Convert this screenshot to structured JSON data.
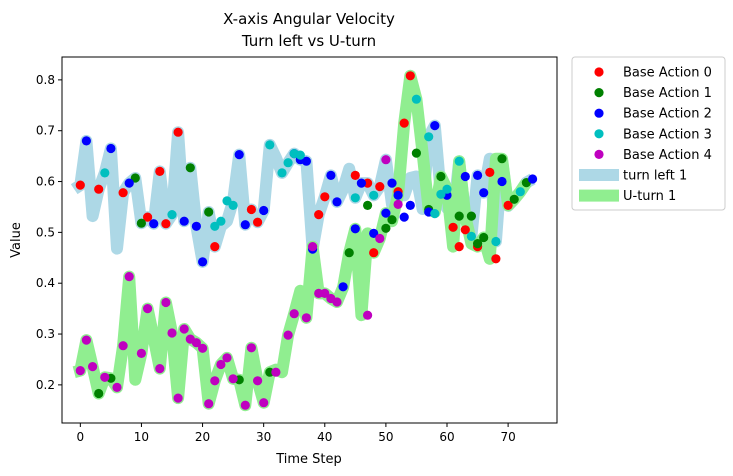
{
  "chart_data": {
    "type": "scatter",
    "title": "X-axis Angular Velocity",
    "subtitle": "Turn left vs U-turn",
    "xlabel": "Time Step",
    "ylabel": "Value",
    "xlim": [
      -3,
      78
    ],
    "ylim": [
      0.125,
      0.845
    ],
    "xticks": [
      0,
      10,
      20,
      30,
      40,
      50,
      60,
      70
    ],
    "yticks": [
      0.2,
      0.3,
      0.4,
      0.5,
      0.6,
      0.7,
      0.8
    ],
    "grid": false,
    "legend_position": "outside-top-right",
    "bands": [
      {
        "name": "turn left 1",
        "color": "#add8e6",
        "x": [
          -1,
          0,
          1,
          2,
          3,
          4,
          5,
          6,
          7,
          8,
          9,
          10,
          11,
          12,
          13,
          14,
          15,
          16,
          17,
          18,
          19,
          20,
          21,
          22,
          23,
          24,
          25,
          26,
          27,
          28,
          29,
          30,
          31,
          32,
          33,
          34,
          35,
          36,
          37,
          38,
          39,
          40,
          41,
          42,
          43,
          44,
          45,
          46,
          47,
          48,
          49,
          50,
          51,
          52,
          53,
          54,
          55,
          56,
          57,
          58,
          59,
          60,
          61,
          62,
          63,
          64,
          65,
          66,
          67,
          68,
          69,
          70,
          71,
          72,
          73,
          74
        ],
        "y": [
          0.585,
          0.593,
          0.68,
          0.532,
          0.585,
          0.617,
          0.665,
          0.468,
          0.578,
          0.597,
          0.607,
          0.518,
          0.53,
          0.517,
          0.62,
          0.517,
          0.535,
          0.697,
          0.522,
          0.627,
          0.512,
          0.442,
          0.54,
          0.472,
          0.512,
          0.522,
          0.562,
          0.653,
          0.515,
          0.545,
          0.52,
          0.543,
          0.672,
          0.647,
          0.617,
          0.637,
          0.655,
          0.643,
          0.64,
          0.467,
          0.535,
          0.57,
          0.612,
          0.56,
          0.585,
          0.625,
          0.568,
          0.597,
          0.597,
          0.573,
          0.59,
          0.643,
          0.555,
          0.58,
          0.573,
          0.607,
          0.61,
          0.546,
          0.688,
          0.71,
          0.573,
          0.548,
          0.535,
          0.64,
          0.532,
          0.492,
          0.612,
          0.578,
          0.645,
          0.482,
          0.642,
          0.552,
          0.565,
          0.58,
          0.598,
          0.605
        ]
      },
      {
        "name": "U-turn 1",
        "color": "#90ee90",
        "x": [
          -1,
          0,
          1,
          2,
          3,
          4,
          5,
          6,
          7,
          8,
          9,
          10,
          11,
          12,
          13,
          14,
          15,
          16,
          17,
          18,
          19,
          20,
          21,
          22,
          23,
          24,
          25,
          26,
          27,
          28,
          29,
          30,
          31,
          32,
          33,
          34,
          35,
          36,
          37,
          38,
          39,
          40,
          41,
          42,
          43,
          44,
          45,
          46,
          47,
          48,
          49,
          50,
          51,
          52,
          53,
          54,
          55,
          56,
          57,
          58,
          59,
          60,
          61,
          62,
          63,
          64,
          65,
          66,
          67,
          68,
          69,
          70,
          71,
          72,
          73
        ],
        "y": [
          0.225,
          0.228,
          0.288,
          0.236,
          0.183,
          0.215,
          0.213,
          0.195,
          0.277,
          0.413,
          0.21,
          0.262,
          0.35,
          0.292,
          0.232,
          0.362,
          0.302,
          0.174,
          0.31,
          0.29,
          0.283,
          0.272,
          0.163,
          0.208,
          0.24,
          0.253,
          0.212,
          0.21,
          0.16,
          0.273,
          0.208,
          0.165,
          0.225,
          0.23,
          0.225,
          0.298,
          0.34,
          0.385,
          0.332,
          0.472,
          0.38,
          0.38,
          0.37,
          0.363,
          0.392,
          0.46,
          0.507,
          0.337,
          0.498,
          0.46,
          0.488,
          0.538,
          0.522,
          0.575,
          0.715,
          0.808,
          0.762,
          0.656,
          0.545,
          0.54,
          0.61,
          0.585,
          0.472,
          0.64,
          0.532,
          0.478,
          0.472,
          0.49,
          0.448,
          0.645,
          0.645,
          0.553,
          0.565,
          0.58,
          0.598
        ]
      }
    ],
    "series": [
      {
        "name": "Base Action 0",
        "color": "#ff0000",
        "x": [
          0,
          3,
          7,
          11,
          13,
          14,
          16,
          22,
          28,
          29,
          39,
          40,
          45,
          47,
          48,
          49,
          52,
          53,
          54,
          61,
          62,
          63,
          65,
          67,
          68,
          70
        ],
        "y": [
          0.593,
          0.585,
          0.578,
          0.53,
          0.62,
          0.517,
          0.697,
          0.472,
          0.545,
          0.52,
          0.535,
          0.57,
          0.612,
          0.597,
          0.46,
          0.59,
          0.58,
          0.715,
          0.808,
          0.51,
          0.472,
          0.505,
          0.472,
          0.618,
          0.448,
          0.553
        ]
      },
      {
        "name": "Base Action 1",
        "color": "#008000",
        "x": [
          3,
          5,
          9,
          10,
          18,
          21,
          26,
          31,
          44,
          47,
          50,
          51,
          55,
          57,
          59,
          62,
          64,
          65,
          66,
          69,
          71,
          73
        ],
        "y": [
          0.183,
          0.213,
          0.607,
          0.518,
          0.627,
          0.54,
          0.21,
          0.225,
          0.46,
          0.553,
          0.508,
          0.525,
          0.656,
          0.545,
          0.61,
          0.532,
          0.532,
          0.478,
          0.49,
          0.645,
          0.565,
          0.598
        ]
      },
      {
        "name": "Base Action 2",
        "color": "#0000ff",
        "x": [
          1,
          5,
          8,
          12,
          17,
          19,
          20,
          26,
          27,
          30,
          35,
          36,
          37,
          38,
          41,
          42,
          43,
          45,
          46,
          48,
          50,
          51,
          52,
          53,
          54,
          57,
          58,
          60,
          63,
          65,
          66,
          69,
          74
        ],
        "y": [
          0.68,
          0.665,
          0.597,
          0.517,
          0.522,
          0.512,
          0.442,
          0.653,
          0.515,
          0.543,
          0.655,
          0.643,
          0.64,
          0.467,
          0.612,
          0.56,
          0.393,
          0.507,
          0.597,
          0.498,
          0.538,
          0.597,
          0.573,
          0.53,
          0.553,
          0.54,
          0.71,
          0.573,
          0.61,
          0.612,
          0.578,
          0.6,
          0.605
        ]
      },
      {
        "name": "Base Action 3",
        "color": "#00bfbf",
        "x": [
          4,
          15,
          22,
          23,
          24,
          25,
          31,
          33,
          34,
          35,
          36,
          45,
          48,
          55,
          57,
          58,
          59,
          60,
          62,
          64,
          68,
          72
        ],
        "y": [
          0.617,
          0.535,
          0.512,
          0.522,
          0.562,
          0.553,
          0.672,
          0.617,
          0.637,
          0.655,
          0.652,
          0.568,
          0.573,
          0.762,
          0.688,
          0.537,
          0.575,
          0.585,
          0.64,
          0.492,
          0.482,
          0.58
        ]
      },
      {
        "name": "Base Action 4",
        "color": "#bf00bf",
        "x": [
          0,
          1,
          2,
          4,
          6,
          7,
          8,
          10,
          11,
          13,
          14,
          15,
          16,
          17,
          18,
          19,
          20,
          21,
          22,
          23,
          24,
          25,
          27,
          28,
          29,
          30,
          32,
          34,
          35,
          37,
          38,
          39,
          40,
          41,
          42,
          47,
          49,
          50,
          52
        ],
        "y": [
          0.228,
          0.288,
          0.236,
          0.215,
          0.195,
          0.277,
          0.413,
          0.262,
          0.35,
          0.232,
          0.362,
          0.302,
          0.174,
          0.31,
          0.29,
          0.283,
          0.272,
          0.163,
          0.208,
          0.24,
          0.253,
          0.212,
          0.16,
          0.273,
          0.208,
          0.165,
          0.225,
          0.298,
          0.34,
          0.332,
          0.472,
          0.38,
          0.38,
          0.37,
          0.363,
          0.337,
          0.488,
          0.643,
          0.555
        ]
      }
    ]
  }
}
